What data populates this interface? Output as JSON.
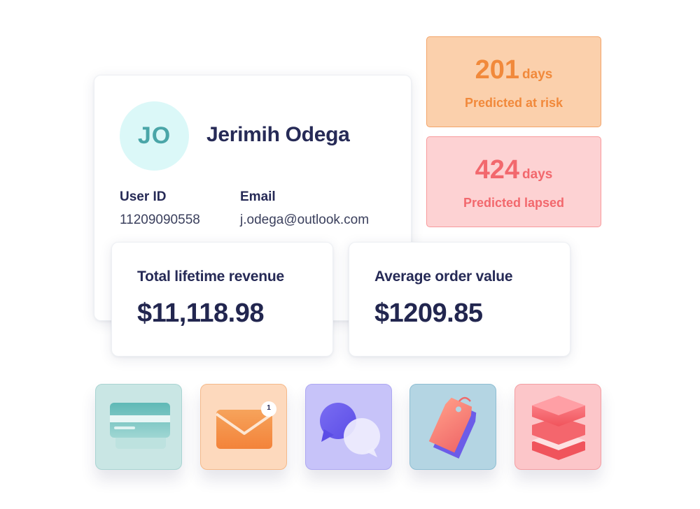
{
  "profile": {
    "initials": "JO",
    "name": "Jerimih Odega",
    "user_id_label": "User ID",
    "user_id": "11209090558",
    "email_label": "Email",
    "email": "j.odega@outlook.com"
  },
  "stats": {
    "at_risk": {
      "value": "201",
      "unit": "days",
      "caption": "Predicted at risk",
      "color": "#f1893b"
    },
    "lapsed": {
      "value": "424",
      "unit": "days",
      "caption": "Predicted lapsed",
      "color": "#f2686d"
    }
  },
  "metrics": {
    "revenue": {
      "label": "Total lifetime revenue",
      "value": "$11,118.98"
    },
    "aov": {
      "label": "Average order value",
      "value": "$1209.85"
    }
  },
  "tiles": [
    {
      "icon": "credit-card-icon"
    },
    {
      "icon": "mail-icon",
      "badge": "1"
    },
    {
      "icon": "chat-bubbles-icon"
    },
    {
      "icon": "price-tag-icon"
    },
    {
      "icon": "layers-stack-icon"
    }
  ]
}
